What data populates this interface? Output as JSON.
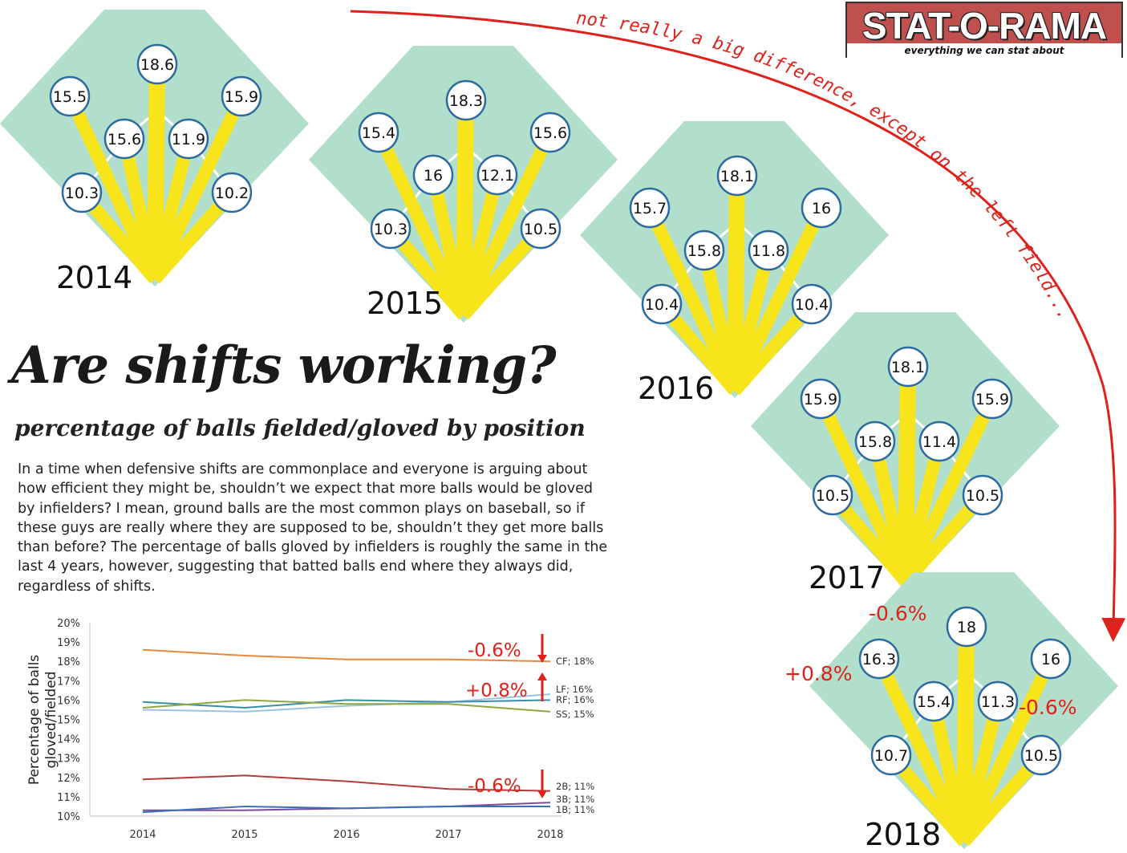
{
  "logo": {
    "title": "STAT-O-RAMA",
    "tagline": "everything we can stat about"
  },
  "title": "Are shifts working?",
  "subtitle": "percentage of balls fielded/gloved by position",
  "body_text": "In a time when defensive shifts are commonplace and everyone is arguing about how efficient they might be, shouldn’t we expect that more balls would be gloved by infielders? I mean, ground balls are the most common plays on baseball, so if these guys are really where they are supposed to be, shouldn’t they get more balls than before? The percentage of balls gloved by infielders is roughly the same in the last 4 years, however, suggesting that batted balls end where they always did, regardless of shifts.",
  "arc_annotation": "not really a big difference, except on the left field...",
  "colors": {
    "field": "#b1dfcc",
    "fan": "#f7e41a",
    "circle_border": "#2d6aa0",
    "accent_red": "#e0201a"
  },
  "chart_data": [
    {
      "type": "diamond",
      "year": "2014",
      "values": {
        "LF": "15.5",
        "CF": "18.6",
        "RF": "15.9",
        "SS": "15.6",
        "2B": "11.9",
        "3B": "10.3",
        "1B": "10.2"
      }
    },
    {
      "type": "diamond",
      "year": "2015",
      "values": {
        "LF": "15.4",
        "CF": "18.3",
        "RF": "15.6",
        "SS": "16",
        "2B": "12.1",
        "3B": "10.3",
        "1B": "10.5"
      }
    },
    {
      "type": "diamond",
      "year": "2016",
      "values": {
        "LF": "15.7",
        "CF": "18.1",
        "RF": "16",
        "SS": "15.8",
        "2B": "11.8",
        "3B": "10.4",
        "1B": "10.4"
      }
    },
    {
      "type": "diamond",
      "year": "2017",
      "values": {
        "LF": "15.9",
        "CF": "18.1",
        "RF": "15.9",
        "SS": "15.8",
        "2B": "11.4",
        "3B": "10.5",
        "1B": "10.5"
      }
    },
    {
      "type": "diamond",
      "year": "2018",
      "values": {
        "LF": "16.3",
        "CF": "18",
        "RF": "16",
        "SS": "15.4",
        "2B": "11.3",
        "3B": "10.7",
        "1B": "10.5"
      },
      "annotations": {
        "CF": "-0.6%",
        "LF": "+0.8%",
        "2B": "-0.6%"
      }
    },
    {
      "type": "line",
      "ylabel": "Percentage of balls gloved/fielded",
      "x": [
        "2014",
        "2015",
        "2016",
        "2017",
        "2018"
      ],
      "ylim": [
        10,
        20
      ],
      "yticks": [
        "10%",
        "11%",
        "12%",
        "13%",
        "14%",
        "15%",
        "16%",
        "17%",
        "18%",
        "19%",
        "20%"
      ],
      "series": [
        {
          "name": "CF",
          "label": "CF; 18%",
          "color": "#e38a3f",
          "values": [
            18.6,
            18.3,
            18.1,
            18.1,
            18.0
          ]
        },
        {
          "name": "LF",
          "label": "LF; 16%",
          "color": "#9cc3e0",
          "values": [
            15.5,
            15.4,
            15.7,
            15.9,
            16.3
          ]
        },
        {
          "name": "RF",
          "label": "RF; 16%",
          "color": "#3a8fa7",
          "values": [
            15.9,
            15.6,
            16.0,
            15.9,
            16.0
          ]
        },
        {
          "name": "SS",
          "label": "SS; 15%",
          "color": "#8ea83f",
          "values": [
            15.6,
            16.0,
            15.8,
            15.8,
            15.4
          ]
        },
        {
          "name": "2B",
          "label": "2B; 11%",
          "color": "#b23c3c",
          "values": [
            11.9,
            12.1,
            11.8,
            11.4,
            11.3
          ]
        },
        {
          "name": "3B",
          "label": "3B; 11%",
          "color": "#7a4f9a",
          "values": [
            10.3,
            10.3,
            10.4,
            10.5,
            10.7
          ]
        },
        {
          "name": "1B",
          "label": "1B; 11%",
          "color": "#3d6fb6",
          "values": [
            10.2,
            10.5,
            10.4,
            10.5,
            10.5
          ]
        }
      ],
      "annotations": [
        {
          "text": "-0.6%",
          "series": "CF",
          "direction": "down"
        },
        {
          "text": "+0.8%",
          "series": "LF",
          "direction": "up"
        },
        {
          "text": "-0.6%",
          "series": "2B",
          "direction": "down"
        }
      ]
    }
  ]
}
